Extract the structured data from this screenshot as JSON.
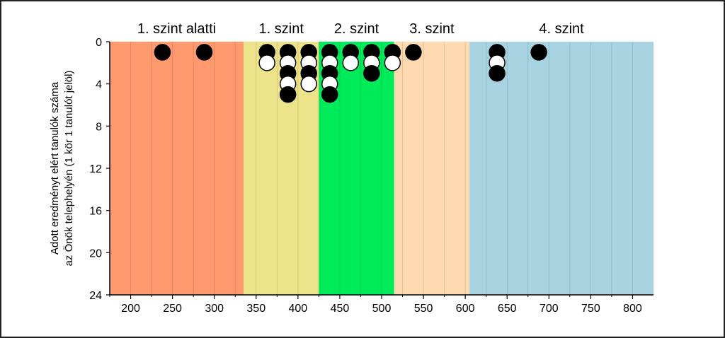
{
  "chart_data": {
    "type": "scatter",
    "ylabel": "Adott eredményt elért tanulók száma",
    "ylabel2": "az Önök telephelyén (1 kör 1 tanulót jelöl)",
    "xlim": [
      175,
      825
    ],
    "ylim": [
      0,
      24
    ],
    "y_inverted": true,
    "xticks": [
      200,
      250,
      300,
      350,
      400,
      450,
      500,
      550,
      600,
      650,
      700,
      750,
      800
    ],
    "yticks": [
      0,
      4,
      8,
      12,
      16,
      20,
      24
    ],
    "minor_grid_step": 25,
    "bands": [
      {
        "label": "1. szint alatti",
        "from": 175,
        "to": 335,
        "color": "#FF9A6E"
      },
      {
        "label": "1. szint",
        "from": 335,
        "to": 425,
        "color": "#EDE38A"
      },
      {
        "label": "2. szint",
        "from": 425,
        "to": 515,
        "color": "#00EB5A"
      },
      {
        "label": "3. szint",
        "from": 515,
        "to": 605,
        "color": "#FFD9B0"
      },
      {
        "label": "4. szint",
        "from": 605,
        "to": 825,
        "color": "#A8D4E2"
      }
    ],
    "series": [
      {
        "name": "tanuló",
        "points": [
          {
            "x": 238,
            "y": 1,
            "fill": "black"
          },
          {
            "x": 288,
            "y": 1,
            "fill": "black"
          },
          {
            "x": 363,
            "y": 1,
            "fill": "black"
          },
          {
            "x": 363,
            "y": 2,
            "fill": "white"
          },
          {
            "x": 388,
            "y": 1,
            "fill": "black"
          },
          {
            "x": 388,
            "y": 2,
            "fill": "white"
          },
          {
            "x": 388,
            "y": 3,
            "fill": "black"
          },
          {
            "x": 388,
            "y": 4,
            "fill": "white"
          },
          {
            "x": 388,
            "y": 5,
            "fill": "black"
          },
          {
            "x": 413,
            "y": 1,
            "fill": "black"
          },
          {
            "x": 413,
            "y": 2,
            "fill": "white"
          },
          {
            "x": 413,
            "y": 3,
            "fill": "black"
          },
          {
            "x": 413,
            "y": 4,
            "fill": "white"
          },
          {
            "x": 438,
            "y": 1,
            "fill": "black"
          },
          {
            "x": 438,
            "y": 2,
            "fill": "white"
          },
          {
            "x": 438,
            "y": 3,
            "fill": "black"
          },
          {
            "x": 438,
            "y": 4,
            "fill": "white"
          },
          {
            "x": 438,
            "y": 5,
            "fill": "black"
          },
          {
            "x": 463,
            "y": 1,
            "fill": "black"
          },
          {
            "x": 463,
            "y": 2,
            "fill": "white"
          },
          {
            "x": 488,
            "y": 1,
            "fill": "black"
          },
          {
            "x": 488,
            "y": 2,
            "fill": "white"
          },
          {
            "x": 488,
            "y": 3,
            "fill": "black"
          },
          {
            "x": 513,
            "y": 1,
            "fill": "black"
          },
          {
            "x": 513,
            "y": 2,
            "fill": "white"
          },
          {
            "x": 538,
            "y": 1,
            "fill": "black"
          },
          {
            "x": 638,
            "y": 1,
            "fill": "black"
          },
          {
            "x": 638,
            "y": 2,
            "fill": "white"
          },
          {
            "x": 638,
            "y": 3,
            "fill": "black"
          },
          {
            "x": 688,
            "y": 1,
            "fill": "black"
          }
        ]
      }
    ]
  }
}
